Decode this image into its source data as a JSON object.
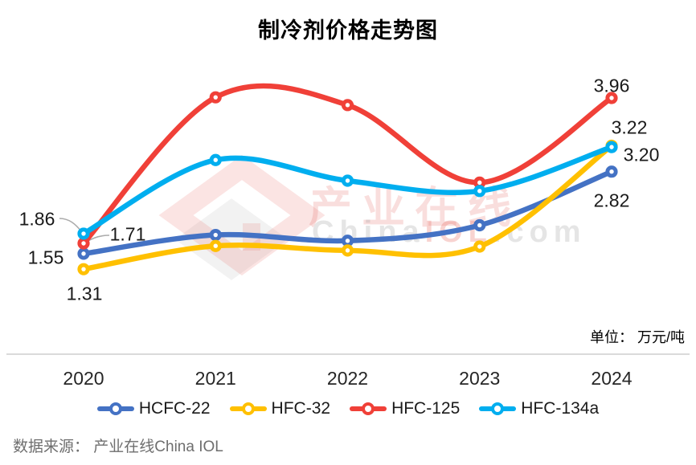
{
  "chart_data": {
    "type": "line",
    "title": "制冷剂价格走势图",
    "unit_label": "单位： 万元/吨",
    "source": "数据来源： 产业在线China IOL",
    "categories": [
      "2020",
      "2021",
      "2022",
      "2023",
      "2024"
    ],
    "series": [
      {
        "name": "HCFC-22",
        "color": "#4472C4",
        "values": [
          1.55,
          1.84,
          1.75,
          1.99,
          2.82
        ]
      },
      {
        "name": "HFC-32",
        "color": "#FFC000",
        "values": [
          1.31,
          1.67,
          1.6,
          1.66,
          3.22
        ]
      },
      {
        "name": "HFC-125",
        "color": "#F04038",
        "values": [
          1.71,
          3.97,
          3.85,
          2.65,
          3.96
        ]
      },
      {
        "name": "HFC-134a",
        "color": "#00AEEF",
        "values": [
          1.86,
          3.0,
          2.68,
          2.52,
          3.2
        ]
      }
    ],
    "point_labels": [
      "1.86",
      "1.71",
      "1.55",
      "1.31",
      "3.96",
      "3.22",
      "3.20",
      "2.82"
    ],
    "ylim": [
      1.0,
      4.3
    ],
    "xlabel": "",
    "ylabel": "",
    "grid": false,
    "legend_position": "bottom",
    "marker": "circle-ring"
  },
  "watermark": {
    "text_cn": "产业在线",
    "text_en_prefix": "China",
    "text_en_mid": "IOL",
    "text_en_suffix": ".com"
  },
  "colors": {
    "axis_line": "#DADADA",
    "leader_line": "#ABABAB",
    "source_text": "#6E6E6E"
  }
}
